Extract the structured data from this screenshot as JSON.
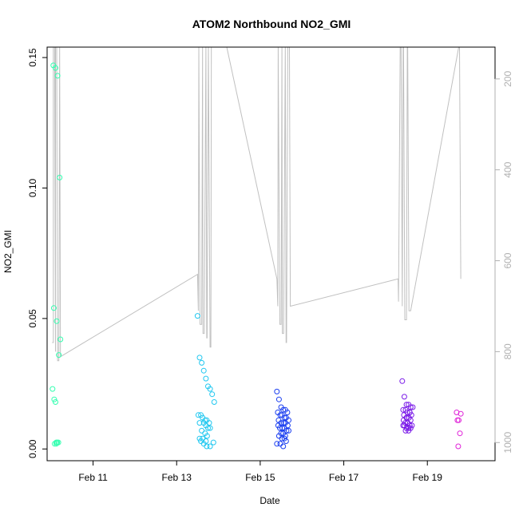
{
  "chart_data": {
    "type": "scatter",
    "title": "ATOM2 Northbound NO2_GMI",
    "xlabel": "Date",
    "ylabel": "NO2_GMI",
    "x_unit": "day of February",
    "xlim": [
      9.9,
      20.62
    ],
    "ylim": [
      -0.0045,
      0.154
    ],
    "y_ticks": [
      0.0,
      0.05,
      0.1,
      0.15
    ],
    "y_tick_labels": [
      "0.00",
      "0.05",
      "0.10",
      "0.15"
    ],
    "x_ticks": [
      11,
      13,
      15,
      17,
      19
    ],
    "x_tick_labels": [
      "Feb 11",
      "Feb 13",
      "Feb 15",
      "Feb 17",
      "Feb 19"
    ],
    "right_axis": {
      "label_color": "#b0b0b0",
      "inverted": true,
      "ylim": [
        1040,
        130
      ],
      "ticks": [
        200,
        400,
        600,
        800,
        1000
      ],
      "tick_labels": [
        "200",
        "400",
        "600",
        "800",
        "1000"
      ]
    },
    "grid": false,
    "legend": "none",
    "point_series": [
      {
        "color": "#33ffb0",
        "x": [
          10.05,
          10.1,
          10.15,
          10.2,
          10.06,
          10.13,
          10.22,
          10.18,
          10.03,
          10.07,
          10.1,
          10.12,
          10.17,
          10.12,
          10.08,
          10.14
        ],
        "y": [
          0.147,
          0.146,
          0.143,
          0.104,
          0.054,
          0.049,
          0.042,
          0.036,
          0.023,
          0.019,
          0.018,
          0.0025,
          0.0025,
          0.002,
          0.002,
          0.0025
        ]
      },
      {
        "color": "#22c8f0",
        "x": [
          13.5,
          13.55,
          13.6,
          13.65,
          13.7,
          13.75,
          13.8,
          13.85,
          13.9,
          13.52,
          13.58,
          13.62,
          13.68,
          13.72,
          13.78,
          13.55,
          13.65,
          13.7,
          13.75,
          13.8,
          13.6,
          13.68,
          13.73,
          13.55,
          13.62,
          13.7,
          13.58,
          13.65,
          13.72,
          13.8,
          13.88
        ],
        "y": [
          0.051,
          0.035,
          0.033,
          0.03,
          0.027,
          0.024,
          0.023,
          0.021,
          0.018,
          0.013,
          0.013,
          0.012,
          0.011,
          0.011,
          0.01,
          0.01,
          0.01,
          0.009,
          0.008,
          0.008,
          0.007,
          0.006,
          0.005,
          0.004,
          0.004,
          0.003,
          0.003,
          0.002,
          0.001,
          0.001,
          0.0025
        ]
      },
      {
        "color": "#1a3ef0",
        "x": [
          15.4,
          15.45,
          15.5,
          15.55,
          15.6,
          15.65,
          15.42,
          15.48,
          15.52,
          15.58,
          15.62,
          15.68,
          15.44,
          15.5,
          15.56,
          15.6,
          15.66,
          15.43,
          15.47,
          15.53,
          15.58,
          15.63,
          15.68,
          15.5,
          15.55,
          15.6,
          15.45,
          15.52,
          15.58,
          15.62,
          15.4,
          15.48,
          15.55
        ],
        "y": [
          0.022,
          0.019,
          0.016,
          0.015,
          0.015,
          0.014,
          0.014,
          0.013,
          0.013,
          0.012,
          0.012,
          0.011,
          0.011,
          0.01,
          0.01,
          0.01,
          0.009,
          0.009,
          0.008,
          0.008,
          0.008,
          0.007,
          0.007,
          0.006,
          0.006,
          0.005,
          0.005,
          0.004,
          0.004,
          0.003,
          0.002,
          0.002,
          0.001
        ]
      },
      {
        "color": "#7a1ae8",
        "x": [
          18.4,
          18.45,
          18.5,
          18.55,
          18.6,
          18.65,
          18.42,
          18.48,
          18.52,
          18.58,
          18.62,
          18.44,
          18.5,
          18.56,
          18.6,
          18.43,
          18.47,
          18.53,
          18.58,
          18.63,
          18.45,
          18.5,
          18.55,
          18.6,
          18.48,
          18.55,
          18.42,
          18.5,
          18.58
        ],
        "y": [
          0.026,
          0.02,
          0.017,
          0.017,
          0.016,
          0.016,
          0.015,
          0.015,
          0.014,
          0.014,
          0.013,
          0.013,
          0.012,
          0.012,
          0.011,
          0.011,
          0.01,
          0.01,
          0.009,
          0.009,
          0.009,
          0.008,
          0.008,
          0.008,
          0.007,
          0.007,
          0.009,
          0.012,
          0.014
        ]
      },
      {
        "color": "#e020d8",
        "x": [
          19.7,
          19.75,
          19.72,
          19.78,
          19.74,
          19.8
        ],
        "y": [
          0.014,
          0.011,
          0.011,
          0.006,
          0.001,
          0.0135
        ]
      }
    ],
    "altitude_trace": {
      "color": "#c0c0c0",
      "x": [
        10.02,
        10.05,
        10.05,
        10.08,
        10.1,
        10.1,
        10.13,
        10.15,
        10.18,
        10.2,
        10.2,
        10.22,
        10.24,
        13.5,
        13.52,
        13.53,
        13.56,
        13.6,
        13.62,
        13.63,
        13.66,
        13.7,
        13.72,
        13.73,
        13.76,
        13.8,
        13.82,
        13.83,
        13.86,
        13.9,
        14.2,
        15.4,
        15.42,
        15.43,
        15.47,
        15.5,
        15.52,
        15.53,
        15.56,
        15.6,
        15.62,
        15.63,
        15.66,
        15.7,
        15.72,
        18.3,
        18.31,
        18.35,
        18.37,
        18.4,
        18.42,
        18.43,
        18.46,
        18.5,
        18.52,
        18.53,
        18.56,
        18.6,
        19.75,
        19.77,
        19.8
      ],
      "y": [
        780,
        780,
        130,
        130,
        800,
        130,
        130,
        820,
        820,
        130,
        130,
        810,
        810,
        630,
        710,
        130,
        740,
        740,
        130,
        760,
        760,
        130,
        770,
        770,
        130,
        790,
        790,
        130,
        130,
        130,
        130,
        640,
        700,
        130,
        740,
        740,
        130,
        760,
        760,
        130,
        780,
        780,
        130,
        130,
        700,
        640,
        690,
        130,
        130,
        700,
        130,
        130,
        730,
        730,
        130,
        130,
        710,
        710,
        130,
        130,
        640
      ]
    }
  }
}
